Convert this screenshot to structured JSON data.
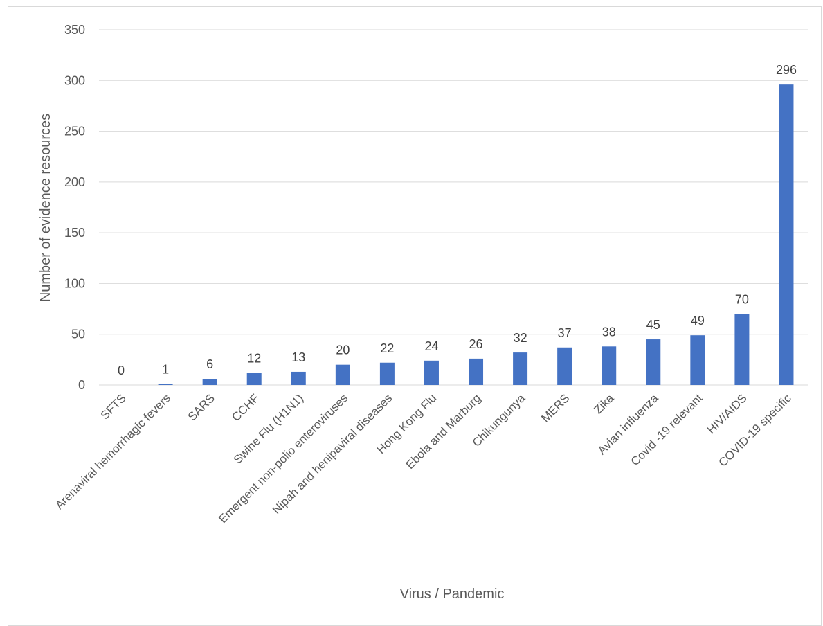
{
  "chart_data": {
    "type": "bar",
    "title": "",
    "xlabel": "Virus / Pandemic",
    "ylabel": "Number of evidence resources",
    "ylim": [
      0,
      350
    ],
    "yticks": [
      0,
      50,
      100,
      150,
      200,
      250,
      300,
      350
    ],
    "grid": true,
    "legend": "none",
    "bar_color": "#4472c4",
    "categories": [
      "SFTS",
      "Arenaviral hemorrhagic fevers",
      "SARS",
      "CCHF",
      "Swine Flu (H1N1)",
      "Emergent non-polio enteroviruses",
      "Nipah and henipaviral diseases",
      "Hong Kong Flu",
      "Ebola and Marburg",
      "Chikungunya",
      "MERS",
      "Zika",
      "Avian influenza",
      "Covid -19 relevant",
      "HIV/AIDS",
      "COVID-19 specific"
    ],
    "values": [
      0,
      1,
      6,
      12,
      13,
      20,
      22,
      24,
      26,
      32,
      37,
      38,
      45,
      49,
      70,
      296
    ]
  }
}
